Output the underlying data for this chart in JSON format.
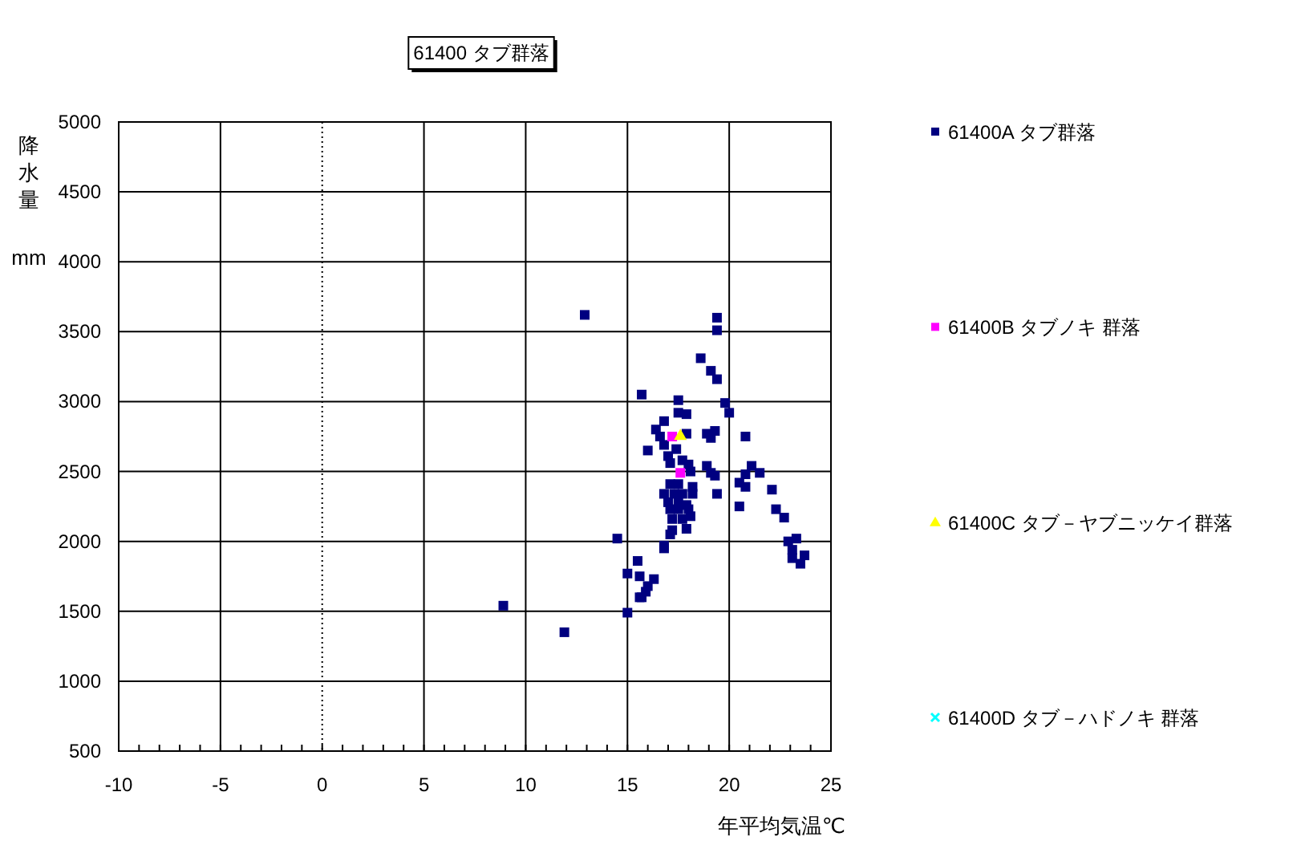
{
  "chart_data": {
    "type": "scatter",
    "title": "61400 タブ群落",
    "xlabel": "年平均気温℃",
    "ylabel": "降水量 mm",
    "xlim": [
      -10,
      25
    ],
    "ylim": [
      500,
      5000
    ],
    "xticks": [
      -10,
      {
        "value": -9,
        "label": null
      },
      {
        "value": -8,
        "label": null
      },
      {
        "value": -7,
        "label": null
      },
      {
        "value": -6,
        "label": null
      },
      -5,
      {
        "value": -4,
        "label": null
      },
      {
        "value": -3,
        "label": null
      },
      {
        "value": -2,
        "label": null
      },
      {
        "value": -1,
        "label": null
      },
      0,
      {
        "value": 1,
        "label": null
      },
      {
        "value": 2,
        "label": null
      },
      {
        "value": 3,
        "label": null
      },
      {
        "value": 4,
        "label": null
      },
      5,
      {
        "value": 6,
        "label": null
      },
      {
        "value": 7,
        "label": null
      },
      {
        "value": 8,
        "label": null
      },
      {
        "value": 9,
        "label": null
      },
      10,
      {
        "value": 11,
        "label": null
      },
      {
        "value": 12,
        "label": null
      },
      {
        "value": 13,
        "label": null
      },
      {
        "value": 14,
        "label": null
      },
      15,
      {
        "value": 16,
        "label": null
      },
      {
        "value": 17,
        "label": null
      },
      {
        "value": 18,
        "label": null
      },
      {
        "value": 19,
        "label": null
      },
      20,
      {
        "value": 21,
        "label": null
      },
      {
        "value": 22,
        "label": null
      },
      {
        "value": 23,
        "label": null
      },
      {
        "value": 24,
        "label": null
      },
      25
    ],
    "yticks": [
      500,
      1000,
      1500,
      2000,
      2500,
      3000,
      3500,
      4000,
      4500,
      5000
    ],
    "grid": true,
    "legend": "right",
    "ref_lines": [
      {
        "axis": "x",
        "value": 0,
        "line_style": "dotted"
      }
    ],
    "series": [
      {
        "name": "61400A タブ群落",
        "color": "#000080",
        "marker": "square",
        "x": [
          12.9,
          19.4,
          19.4,
          18.6,
          19.1,
          19.4,
          15.7,
          17.5,
          19.8,
          20.0,
          17.5,
          17.9,
          16.8,
          16.4,
          16.6,
          17.9,
          18.9,
          19.3,
          19.1,
          20.8,
          16.8,
          17.4,
          16.0,
          17.0,
          17.1,
          17.7,
          18.0,
          18.9,
          19.1,
          19.3,
          18.1,
          21.1,
          21.5,
          20.8,
          20.5,
          20.8,
          17.1,
          17.5,
          18.2,
          16.8,
          17.3,
          17.7,
          18.2,
          17.0,
          17.5,
          17.9,
          17.1,
          17.5,
          18.0,
          18.1,
          17.7,
          17.2,
          17.2,
          17.9,
          17.1,
          19.4,
          20.5,
          22.1,
          22.3,
          22.7,
          14.5,
          16.8,
          16.8,
          22.9,
          23.3,
          23.1,
          23.7,
          23.5,
          23.1,
          15.5,
          15.0,
          15.6,
          16.3,
          16.0,
          15.9,
          15.6,
          15.7,
          8.9,
          15.0,
          11.9
        ],
        "values": [
          3620,
          3600,
          3510,
          3310,
          3220,
          3160,
          3050,
          3010,
          2990,
          2920,
          2920,
          2910,
          2860,
          2800,
          2750,
          2770,
          2770,
          2790,
          2740,
          2750,
          2690,
          2660,
          2650,
          2610,
          2560,
          2580,
          2550,
          2540,
          2490,
          2470,
          2500,
          2540,
          2490,
          2480,
          2420,
          2390,
          2410,
          2410,
          2390,
          2340,
          2340,
          2340,
          2340,
          2280,
          2280,
          2260,
          2230,
          2230,
          2230,
          2180,
          2160,
          2160,
          2080,
          2090,
          2050,
          2340,
          2250,
          2370,
          2230,
          2170,
          2020,
          1970,
          1950,
          2000,
          2020,
          1940,
          1900,
          1840,
          1880,
          1860,
          1770,
          1750,
          1730,
          1680,
          1640,
          1600,
          1600,
          1540,
          1490,
          1350
        ]
      },
      {
        "name": "61400B タブノキ 群落",
        "color": "#ff00ff",
        "marker": "square",
        "x": [
          17.2,
          17.6
        ],
        "values": [
          2750,
          2490
        ]
      },
      {
        "name": "61400C タブ－ヤブニッケイ群落",
        "color": "#ffff00",
        "marker": "triangle",
        "x": [
          17.6
        ],
        "values": [
          2760
        ]
      },
      {
        "name": "61400D タブ－ハドノキ 群落",
        "color": "#00ffff",
        "marker": "cross"
      }
    ]
  }
}
